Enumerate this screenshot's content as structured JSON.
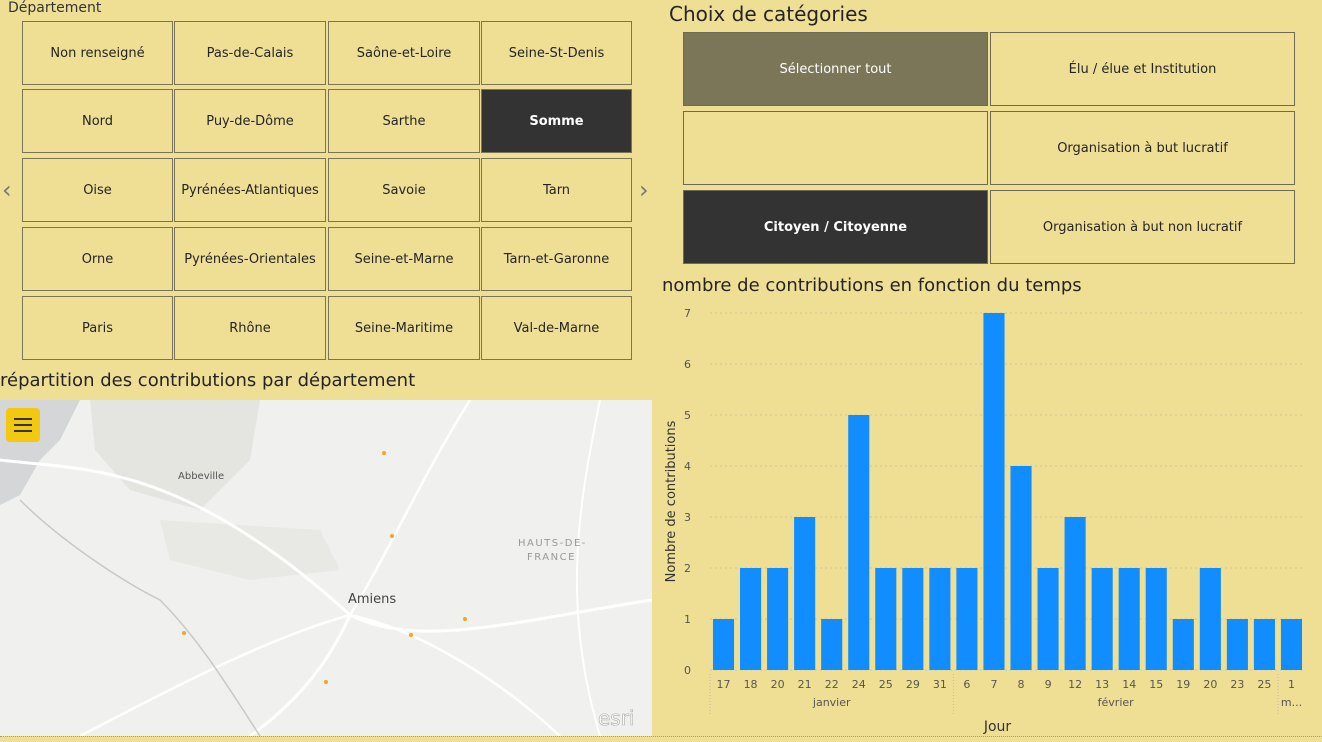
{
  "departement": {
    "title": "Département",
    "rows": [
      [
        "Non renseigné",
        "Pas-de-Calais",
        "Saône-et-Loire",
        "Seine-St-Denis"
      ],
      [
        "Nord",
        "Puy-de-Dôme",
        "Sarthe",
        "Somme"
      ],
      [
        "Oise",
        "Pyrénées-Atlantiques",
        "Savoie",
        "Tarn"
      ],
      [
        "Orne",
        "Pyrénées-Orientales",
        "Seine-et-Marne",
        "Tarn-et-Garonne"
      ],
      [
        "Paris",
        "Rhône",
        "Seine-Maritime",
        "Val-de-Marne"
      ]
    ],
    "selected": "Somme",
    "prev_arrow": "‹",
    "next_arrow": "›"
  },
  "categories": {
    "title": "Choix de catégories",
    "buttons": [
      {
        "label": "Sélectionner tout",
        "state": "select-all"
      },
      {
        "label": "Élu / élue et Institution",
        "state": "normal"
      },
      {
        "label": "",
        "state": "normal"
      },
      {
        "label": "Organisation à but lucratif",
        "state": "normal"
      },
      {
        "label": "Citoyen / Citoyenne",
        "state": "selected"
      },
      {
        "label": "Organisation à but non lucratif",
        "state": "normal"
      }
    ]
  },
  "map": {
    "title": "répartition des contributions par département",
    "places": [
      "Abbeville",
      "Amiens",
      "HAUTS-DE-",
      "FRANCE"
    ],
    "attribution": "esri",
    "menu_icon": "hamburger-icon"
  },
  "chart_data": {
    "type": "bar",
    "title": "nombre de contributions en fonction du temps",
    "xlabel": "Jour",
    "ylabel": "Nombre de contributions",
    "ylim": [
      0,
      7
    ],
    "yticks": [
      0,
      1,
      2,
      3,
      4,
      5,
      6,
      7
    ],
    "categories": [
      "17",
      "18",
      "20",
      "21",
      "22",
      "24",
      "25",
      "29",
      "31",
      "6",
      "7",
      "8",
      "9",
      "12",
      "13",
      "14",
      "15",
      "19",
      "20",
      "23",
      "25",
      "1"
    ],
    "values": [
      1,
      2,
      2,
      3,
      1,
      5,
      2,
      2,
      2,
      2,
      7,
      4,
      2,
      3,
      2,
      2,
      2,
      1,
      2,
      1,
      1,
      1
    ],
    "month_groups": [
      {
        "label": "janvier",
        "start": 0,
        "end": 8
      },
      {
        "label": "février",
        "start": 9,
        "end": 20
      },
      {
        "label": "m...",
        "start": 21,
        "end": 21
      }
    ],
    "bar_color": "#118dff",
    "grid": true
  }
}
